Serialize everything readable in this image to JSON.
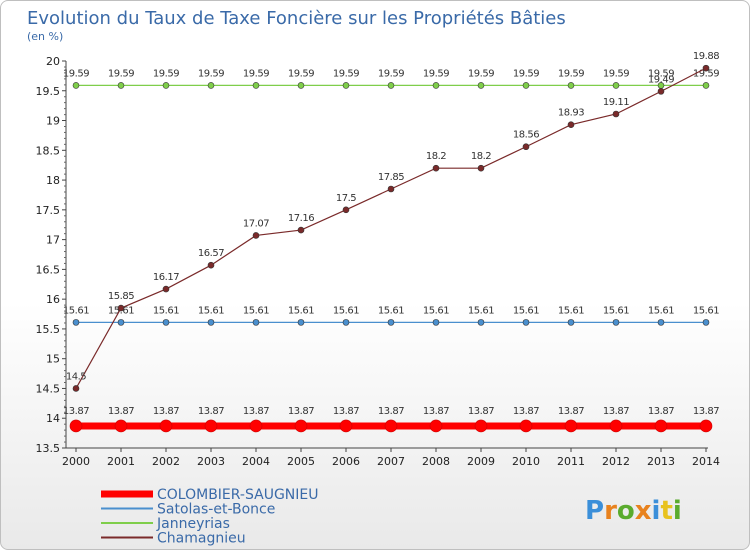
{
  "chart_data": {
    "type": "line",
    "title": "Evolution du Taux de Taxe Foncière sur les Propriétés Bâties",
    "ylabel": "(en %)",
    "xlabel": "",
    "categories": [
      "2000",
      "2001",
      "2002",
      "2003",
      "2004",
      "2005",
      "2006",
      "2007",
      "2008",
      "2009",
      "2010",
      "2011",
      "2012",
      "2013",
      "2014"
    ],
    "yticks": [
      "13.5",
      "14",
      "14.5",
      "15",
      "15.5",
      "16",
      "16.5",
      "17",
      "17.5",
      "18",
      "18.5",
      "19",
      "19.5",
      "20"
    ],
    "ylim": [
      13.5,
      20
    ],
    "grid": false,
    "legend_position": "bottom-left",
    "series": [
      {
        "name": "COLOMBIER-SAUGNIEU",
        "color": "#ff0000",
        "values": [
          13.87,
          13.87,
          13.87,
          13.87,
          13.87,
          13.87,
          13.87,
          13.87,
          13.87,
          13.87,
          13.87,
          13.87,
          13.87,
          13.87,
          13.87
        ],
        "labels": [
          "13.87",
          "13.87",
          "13.87",
          "13.87",
          "13.87",
          "13.87",
          "13.87",
          "13.87",
          "13.87",
          "13.87",
          "13.87",
          "13.87",
          "13.87",
          "13.87",
          "13.87"
        ]
      },
      {
        "name": "Satolas-et-Bonce",
        "color": "#4a8fce",
        "values": [
          15.61,
          15.61,
          15.61,
          15.61,
          15.61,
          15.61,
          15.61,
          15.61,
          15.61,
          15.61,
          15.61,
          15.61,
          15.61,
          15.61,
          15.61
        ],
        "labels": [
          "15.61",
          "15.61",
          "15.61",
          "15.61",
          "15.61",
          "15.61",
          "15.61",
          "15.61",
          "15.61",
          "15.61",
          "15.61",
          "15.61",
          "15.61",
          "15.61",
          "15.61"
        ]
      },
      {
        "name": "Janneyrias",
        "color": "#7fce4a",
        "values": [
          19.59,
          19.59,
          19.59,
          19.59,
          19.59,
          19.59,
          19.59,
          19.59,
          19.59,
          19.59,
          19.59,
          19.59,
          19.59,
          19.59,
          19.59
        ],
        "labels": [
          "19.59",
          "19.59",
          "19.59",
          "19.59",
          "19.59",
          "19.59",
          "19.59",
          "19.59",
          "19.59",
          "19.59",
          "19.59",
          "19.59",
          "19.59",
          "19.59",
          "19.59"
        ]
      },
      {
        "name": "Chamagnieu",
        "color": "#7a2a2a",
        "values": [
          14.5,
          15.85,
          16.17,
          16.57,
          17.07,
          17.16,
          17.5,
          17.85,
          18.2,
          18.2,
          18.56,
          18.93,
          19.11,
          19.49,
          19.88
        ],
        "labels": [
          "14.5",
          "15.85",
          "16.17",
          "16.57",
          "17.07",
          "17.16",
          "17.5",
          "17.85",
          "18.2",
          "18.2",
          "18.56",
          "18.93",
          "19.11",
          "19.49",
          "19.88"
        ]
      }
    ]
  },
  "logo": {
    "text": "Proxiti"
  }
}
